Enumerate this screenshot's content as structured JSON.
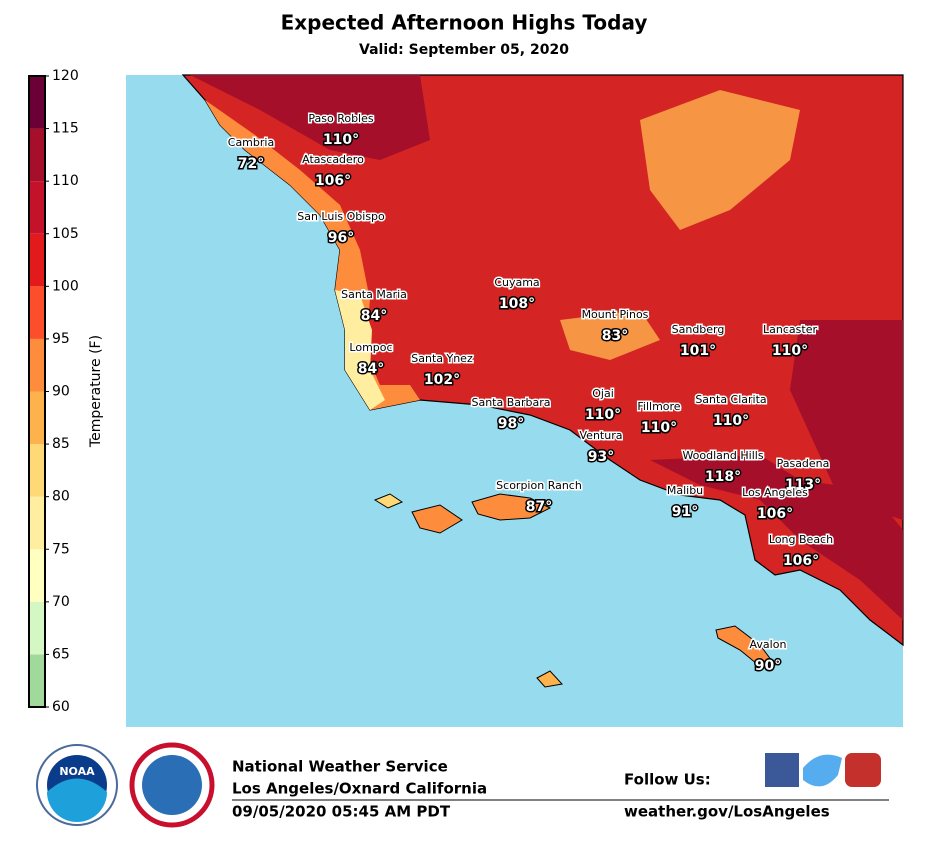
{
  "header": {
    "title": "Expected Afternoon Highs Today",
    "subtitle": "Valid: September 05, 2020"
  },
  "colorbar": {
    "label": "Temperature (F)",
    "ticks": [
      60,
      65,
      70,
      75,
      80,
      85,
      90,
      95,
      100,
      105,
      110,
      115,
      120
    ],
    "colors": [
      "#a1d99b",
      "#d4f7c4",
      "#ffffbf",
      "#ffeda0",
      "#fed976",
      "#feb24c",
      "#fd8d3c",
      "#fc4e2a",
      "#e31a1c",
      "#c4122a",
      "#a50f2a",
      "#6a0036"
    ]
  },
  "stations": [
    {
      "name": "Paso Robles",
      "temp": "110°"
    },
    {
      "name": "Cambria",
      "temp": "72°"
    },
    {
      "name": "Atascadero",
      "temp": "106°"
    },
    {
      "name": "San Luis Obispo",
      "temp": "96°"
    },
    {
      "name": "Cuyama",
      "temp": "108°"
    },
    {
      "name": "Santa Maria",
      "temp": "84°"
    },
    {
      "name": "Mount Pinos",
      "temp": "83°"
    },
    {
      "name": "Sandberg",
      "temp": "101°"
    },
    {
      "name": "Lancaster",
      "temp": "110°"
    },
    {
      "name": "Lompoc",
      "temp": "84°"
    },
    {
      "name": "Santa Ynez",
      "temp": "102°"
    },
    {
      "name": "Santa Barbara",
      "temp": "98°"
    },
    {
      "name": "Ojai",
      "temp": "110°"
    },
    {
      "name": "Fillmore",
      "temp": "110°"
    },
    {
      "name": "Santa Clarita",
      "temp": "110°"
    },
    {
      "name": "Ventura",
      "temp": "93°"
    },
    {
      "name": "Woodland Hills",
      "temp": "118°"
    },
    {
      "name": "Pasadena",
      "temp": "113°"
    },
    {
      "name": "Scorpion Ranch",
      "temp": "87°"
    },
    {
      "name": "Malibu",
      "temp": "91°"
    },
    {
      "name": "Los Angeles",
      "temp": "106°"
    },
    {
      "name": "Long Beach",
      "temp": "106°"
    },
    {
      "name": "Avalon",
      "temp": "90°"
    }
  ],
  "footer": {
    "agency": "National Weather Service",
    "office": "Los Angeles/Oxnard California",
    "issued": "09/05/2020 05:45 AM PDT",
    "follow": "Follow Us:",
    "website": "weather.gov/LosAngeles",
    "noaa_logo": "NOAA"
  }
}
